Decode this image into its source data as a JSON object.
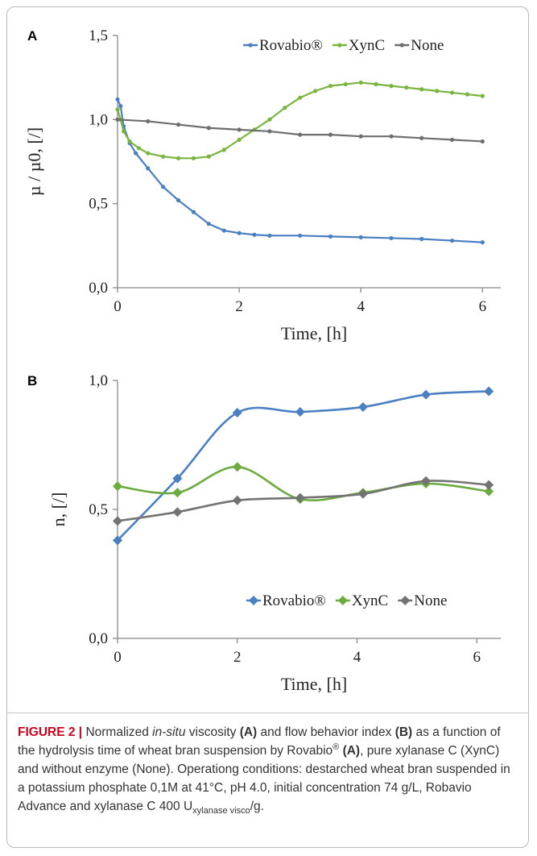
{
  "chart_data": [
    {
      "type": "line",
      "panel": "A",
      "xlabel": "Time, [h]",
      "ylabel": "µ / µ0, [/]",
      "xlim": [
        0,
        6.3
      ],
      "ylim": [
        0,
        1.5
      ],
      "xticks": [
        0,
        2,
        4,
        6
      ],
      "xtick_labels": [
        "0",
        "2",
        "4",
        "6"
      ],
      "yticks": [
        0,
        0.5,
        1.0,
        1.5
      ],
      "ytick_labels": [
        "0,0",
        "0,5",
        "1,0",
        "1,5"
      ],
      "grid": false,
      "legend_position": "top-right",
      "series": [
        {
          "name": "Rovabio®",
          "color": "#4a7fc1",
          "marker": "circle",
          "x": [
            0,
            0.05,
            0.1,
            0.2,
            0.3,
            0.5,
            0.75,
            1.0,
            1.25,
            1.5,
            1.75,
            2.0,
            2.25,
            2.5,
            3.0,
            3.5,
            4.0,
            4.5,
            5.0,
            5.5,
            6.0
          ],
          "y": [
            1.12,
            1.08,
            0.96,
            0.86,
            0.8,
            0.71,
            0.6,
            0.52,
            0.45,
            0.38,
            0.34,
            0.325,
            0.315,
            0.31,
            0.31,
            0.305,
            0.3,
            0.295,
            0.29,
            0.28,
            0.27
          ]
        },
        {
          "name": "XynC",
          "color": "#7ab540",
          "marker": "circle",
          "x": [
            0,
            0.05,
            0.1,
            0.2,
            0.35,
            0.5,
            0.75,
            1.0,
            1.25,
            1.5,
            1.75,
            2.0,
            2.25,
            2.5,
            2.75,
            3.0,
            3.25,
            3.5,
            3.75,
            4.0,
            4.25,
            4.5,
            4.75,
            5.0,
            5.25,
            5.5,
            5.75,
            6.0
          ],
          "y": [
            1.06,
            1.0,
            0.93,
            0.87,
            0.83,
            0.8,
            0.78,
            0.77,
            0.77,
            0.78,
            0.82,
            0.88,
            0.94,
            1.0,
            1.07,
            1.13,
            1.17,
            1.2,
            1.21,
            1.22,
            1.21,
            1.2,
            1.19,
            1.18,
            1.17,
            1.16,
            1.15,
            1.14
          ]
        },
        {
          "name": "None",
          "color": "#6e6e6e",
          "marker": "circle",
          "x": [
            0,
            0.5,
            1.0,
            1.5,
            2.0,
            2.5,
            3.0,
            3.5,
            4.0,
            4.5,
            5.0,
            5.5,
            6.0
          ],
          "y": [
            1.0,
            0.99,
            0.97,
            0.95,
            0.94,
            0.93,
            0.91,
            0.91,
            0.9,
            0.9,
            0.89,
            0.88,
            0.87
          ]
        }
      ]
    },
    {
      "type": "line",
      "panel": "B",
      "xlabel": "Time, [h]",
      "ylabel": "n, [/]",
      "xlim": [
        0,
        6.4
      ],
      "ylim": [
        0,
        1.0
      ],
      "xticks": [
        0,
        2,
        4,
        6
      ],
      "xtick_labels": [
        "0",
        "2",
        "4",
        "6"
      ],
      "yticks": [
        0,
        0.5,
        1.0
      ],
      "ytick_labels": [
        "0,0",
        "0,5",
        "1,0"
      ],
      "grid": false,
      "legend_position": "bottom-right",
      "series": [
        {
          "name": "Rovabio®",
          "color": "#4a7fc1",
          "marker": "diamond",
          "x": [
            0,
            1,
            2,
            3.05,
            4.1,
            5.15,
            6.2
          ],
          "y": [
            0.38,
            0.62,
            0.875,
            0.878,
            0.897,
            0.945,
            0.958
          ]
        },
        {
          "name": "XynC",
          "color": "#6bab3f",
          "marker": "diamond",
          "x": [
            0,
            1,
            2,
            3.05,
            4.1,
            5.15,
            6.2
          ],
          "y": [
            0.59,
            0.565,
            0.665,
            0.54,
            0.565,
            0.6,
            0.57
          ]
        },
        {
          "name": "None",
          "color": "#737373",
          "marker": "diamond",
          "x": [
            0,
            1,
            2,
            3.05,
            4.1,
            5.15,
            6.2
          ],
          "y": [
            0.455,
            0.49,
            0.535,
            0.545,
            0.56,
            0.61,
            0.595
          ]
        }
      ]
    }
  ],
  "caption": {
    "figure_label": "FIGURE 2 |",
    "t1": " Normalized ",
    "t2": "in-situ",
    "t3": " viscosity ",
    "t4": "(A)",
    "t5": " and flow behavior index ",
    "t6": "(B)",
    "t7": " as a function of the hydrolysis time of wheat bran suspension by Rovabio",
    "t8": "®",
    "t9": " ",
    "t10": "(A)",
    "t11": ", pure xylanase C (XynC) and without enzyme (None). Operationg conditions: destarched wheat bran suspended in a potassium phosphate 0,1M at 41°C, pH 4.0, initial concentration 74 g/L, Robavio Advance and xylanase C 400 U",
    "t12": "xylanase visco",
    "t13": "/g."
  }
}
